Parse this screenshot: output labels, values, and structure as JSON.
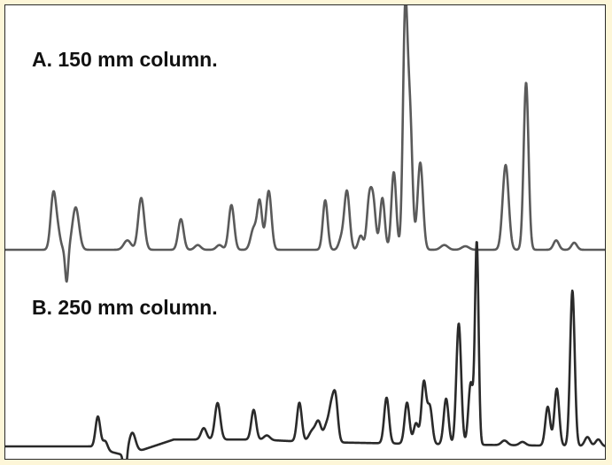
{
  "panels": {
    "a_label": "A. 150 mm column.",
    "b_label": "B. 250 mm column."
  },
  "colors": {
    "page_background": "#fdf6d8",
    "trace_a": "#5a5a5a",
    "trace_b": "#2a2a2a"
  },
  "chart_data": [
    {
      "type": "line",
      "title": "A. 150 mm column.",
      "xlabel": "",
      "ylabel": "",
      "grid": false,
      "x_range": [
        0,
        100
      ],
      "y_range": [
        -15,
        100
      ],
      "baseline": 0,
      "peaks": [
        {
          "x": 8.0,
          "h": 24,
          "w": 0.45
        },
        {
          "x": 8.8,
          "h": 6,
          "w": 0.4
        },
        {
          "x": 10.2,
          "h": -14,
          "w": 0.25
        },
        {
          "x": 11.7,
          "h": 18,
          "w": 0.55
        },
        {
          "x": 20.3,
          "h": 4,
          "w": 0.6
        },
        {
          "x": 22.6,
          "h": 22,
          "w": 0.5
        },
        {
          "x": 29.2,
          "h": 13,
          "w": 0.45
        },
        {
          "x": 32.0,
          "h": 2,
          "w": 0.5
        },
        {
          "x": 35.6,
          "h": 2,
          "w": 0.5
        },
        {
          "x": 37.6,
          "h": 19,
          "w": 0.45
        },
        {
          "x": 41.3,
          "h": 9,
          "w": 0.5
        },
        {
          "x": 42.3,
          "h": 20,
          "w": 0.4
        },
        {
          "x": 43.8,
          "h": 25,
          "w": 0.45
        },
        {
          "x": 53.2,
          "h": 21,
          "w": 0.4
        },
        {
          "x": 55.8,
          "h": 4,
          "w": 0.4
        },
        {
          "x": 56.8,
          "h": 25,
          "w": 0.45
        },
        {
          "x": 59.1,
          "h": 6,
          "w": 0.4
        },
        {
          "x": 60.5,
          "h": 20,
          "w": 0.4
        },
        {
          "x": 61.2,
          "h": 19,
          "w": 0.4
        },
        {
          "x": 62.7,
          "h": 22,
          "w": 0.4
        },
        {
          "x": 64.6,
          "h": 33,
          "w": 0.4
        },
        {
          "x": 66.5,
          "h": 99,
          "w": 0.38
        },
        {
          "x": 67.3,
          "h": 54,
          "w": 0.4
        },
        {
          "x": 69.0,
          "h": 37,
          "w": 0.45
        },
        {
          "x": 73.0,
          "h": 2,
          "w": 0.6
        },
        {
          "x": 76.5,
          "h": 1.5,
          "w": 0.6
        },
        {
          "x": 83.2,
          "h": 36,
          "w": 0.5
        },
        {
          "x": 86.6,
          "h": 71,
          "w": 0.4
        },
        {
          "x": 91.6,
          "h": 4,
          "w": 0.45
        },
        {
          "x": 94.6,
          "h": 3,
          "w": 0.45
        }
      ]
    },
    {
      "type": "line",
      "title": "B. 250 mm column.",
      "xlabel": "",
      "ylabel": "",
      "grid": false,
      "x_range": [
        0,
        100
      ],
      "y_range": [
        -15,
        100
      ],
      "baseline": 0,
      "drift": [
        [
          0,
          0
        ],
        [
          14,
          0
        ],
        [
          20,
          -4
        ],
        [
          28,
          3
        ],
        [
          42,
          3
        ],
        [
          50,
          2
        ],
        [
          70,
          1
        ],
        [
          100,
          0
        ]
      ],
      "peaks": [
        {
          "x": 15.4,
          "h": 14,
          "w": 0.4
        },
        {
          "x": 16.6,
          "h": 4,
          "w": 0.4
        },
        {
          "x": 19.9,
          "h": -11,
          "w": 0.25
        },
        {
          "x": 21.1,
          "h": 9,
          "w": 0.55
        },
        {
          "x": 33.0,
          "h": 5,
          "w": 0.45
        },
        {
          "x": 35.3,
          "h": 16,
          "w": 0.45
        },
        {
          "x": 41.3,
          "h": 13,
          "w": 0.4
        },
        {
          "x": 43.5,
          "h": 2,
          "w": 0.5
        },
        {
          "x": 48.9,
          "h": 17,
          "w": 0.4
        },
        {
          "x": 51.1,
          "h": 5,
          "w": 0.6
        },
        {
          "x": 52.1,
          "h": 8,
          "w": 0.45
        },
        {
          "x": 53.4,
          "h": 7,
          "w": 0.45
        },
        {
          "x": 54.2,
          "h": 13,
          "w": 0.4
        },
        {
          "x": 54.9,
          "h": 19,
          "w": 0.4
        },
        {
          "x": 63.4,
          "h": 20,
          "w": 0.4
        },
        {
          "x": 66.8,
          "h": 18,
          "w": 0.4
        },
        {
          "x": 68.3,
          "h": 9,
          "w": 0.4
        },
        {
          "x": 69.6,
          "h": 27,
          "w": 0.4
        },
        {
          "x": 70.6,
          "h": 16,
          "w": 0.4
        },
        {
          "x": 73.3,
          "h": 20,
          "w": 0.4
        },
        {
          "x": 75.4,
          "h": 53,
          "w": 0.4
        },
        {
          "x": 77.4,
          "h": 27,
          "w": 0.4
        },
        {
          "x": 78.4,
          "h": 88,
          "w": 0.3
        },
        {
          "x": 83.0,
          "h": 2,
          "w": 0.5
        },
        {
          "x": 86.0,
          "h": 1.5,
          "w": 0.5
        },
        {
          "x": 90.2,
          "h": 17,
          "w": 0.4
        },
        {
          "x": 91.7,
          "h": 25,
          "w": 0.4
        },
        {
          "x": 94.3,
          "h": 68,
          "w": 0.38
        },
        {
          "x": 96.8,
          "h": 4,
          "w": 0.45
        },
        {
          "x": 98.6,
          "h": 3,
          "w": 0.45
        }
      ]
    }
  ]
}
